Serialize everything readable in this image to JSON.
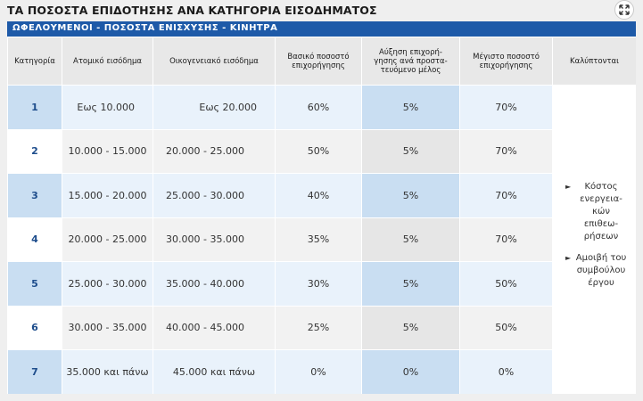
{
  "window": {
    "title": "ΤΑ ΠΟΣΟΣΤΑ ΕΠΙΔΟΤΗΣΗΣ ΑΝΑ ΚΑΤΗΓΟΡΙΑ ΕΙΣΟΔΗΜΑΤΟΣ",
    "close_icon": "close-icon"
  },
  "band": {
    "label": "ΩΦΕΛΟΥΜΕΝΟΙ - ΠΟΣΟΣΤΑ ΕΝΙΣΧΥΣΗΣ - ΚΙΝΗΤΡΑ"
  },
  "table": {
    "headers": {
      "category": "Κατηγορία",
      "personal_income": "Ατομικό εισόδημα",
      "family_income": "Οικογενειακό εισόδημα",
      "basic_rate_1": "Βασικό ποσοστό",
      "basic_rate_2": "επιχορήγησης",
      "increase_1": "Αύξηση επιχορή-",
      "increase_2": "γησης ανά προστα-",
      "increase_3": "τευόμενο μέλος",
      "max_rate_1": "Μέγιστο ποσοστό",
      "max_rate_2": "επιχορήγησης",
      "covered": "Καλύπτονται"
    },
    "rows": [
      {
        "category": "1",
        "personal": "Εως 10.000",
        "family": "Εως 20.000",
        "basic": "60%",
        "increase": "5%",
        "max": "70%"
      },
      {
        "category": "2",
        "personal": "10.000 - 15.000",
        "family": "20.000 - 25.000",
        "basic": "50%",
        "increase": "5%",
        "max": "70%"
      },
      {
        "category": "3",
        "personal": "15.000 - 20.000",
        "family": "25.000 - 30.000",
        "basic": "40%",
        "increase": "5%",
        "max": "70%"
      },
      {
        "category": "4",
        "personal": "20.000 - 25.000",
        "family": "30.000 - 35.000",
        "basic": "35%",
        "increase": "5%",
        "max": "70%"
      },
      {
        "category": "5",
        "personal": "25.000 - 30.000",
        "family": "35.000 - 40.000",
        "basic": "30%",
        "increase": "5%",
        "max": "50%"
      },
      {
        "category": "6",
        "personal": "30.000 - 35.000",
        "family": "40.000 - 45.000",
        "basic": "25%",
        "increase": "5%",
        "max": "50%"
      },
      {
        "category": "7",
        "personal": "35.000 και πάνω",
        "family": "45.000 και πάνω",
        "basic": "0%",
        "increase": "0%",
        "max": "0%"
      }
    ],
    "covered_items": [
      {
        "line1": "Κόστος",
        "line2": "ενεργεια-",
        "line3": "κών επιθεω-",
        "line4": "ρήσεων"
      },
      {
        "line1": "Αμοιβή του",
        "line2": "συμβούλου",
        "line3": "έργου"
      }
    ],
    "arrow_glyph": "►"
  },
  "colors": {
    "accent": "#1e5aa8",
    "category_text": "#1e4d8c"
  }
}
